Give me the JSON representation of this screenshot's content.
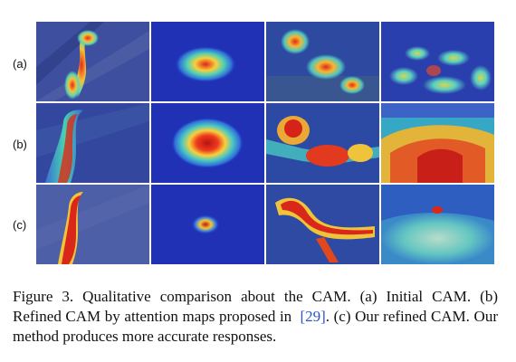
{
  "figure": {
    "row_labels": [
      "(a)",
      "(b)",
      "(c)"
    ],
    "columns": 4,
    "caption": {
      "part1": "Figure 3. Qualitative comparison about the CAM. (a) Initial CAM. (b) Refined CAM by attention maps proposed in",
      "citation": "[29]",
      "part2": ". (c) Our refined CAM. Our method produces more accurate responses."
    }
  },
  "colors": {
    "citation": "#2a54c7",
    "heatmap_low": "#1a2fb8",
    "heatmap_mid": "#38c2d8",
    "heatmap_high": "#d9241b"
  }
}
